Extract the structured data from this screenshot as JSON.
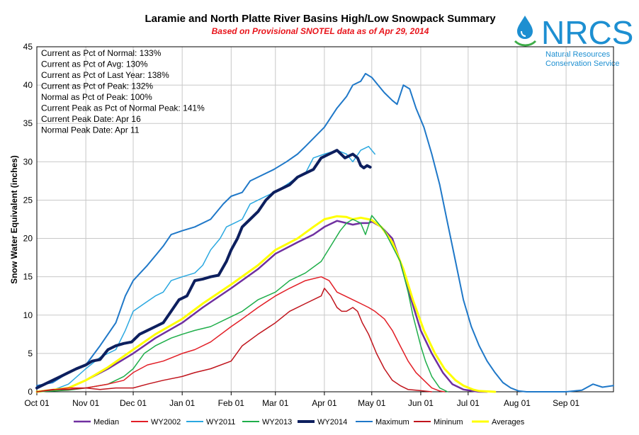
{
  "logo": {
    "text": "NRCS",
    "line1": "Natural Resources",
    "line2": "Conservation Service",
    "color": "#1d8fd1"
  },
  "chart_data": {
    "type": "line",
    "title": "Laramie and North Platte River Basins High/Low Snowpack Summary",
    "subtitle": "Based on Provisional SNOTEL data as of Apr 29, 2014",
    "ylabel": "Snow Water Equivalent (inches)",
    "xlabel": "",
    "ylim": [
      0,
      45
    ],
    "yticks": [
      0,
      5,
      10,
      15,
      20,
      25,
      30,
      35,
      40,
      45
    ],
    "xlim": [
      0,
      365
    ],
    "xticks": [
      {
        "label": "Oct 01",
        "day": 0
      },
      {
        "label": "Nov 01",
        "day": 31
      },
      {
        "label": "Dec 01",
        "day": 61
      },
      {
        "label": "Jan 01",
        "day": 92
      },
      {
        "label": "Feb 01",
        "day": 123
      },
      {
        "label": "Mar 01",
        "day": 151
      },
      {
        "label": "Apr 01",
        "day": 182
      },
      {
        "label": "May 01",
        "day": 212
      },
      {
        "label": "Jun 01",
        "day": 243
      },
      {
        "label": "Jul 01",
        "day": 273
      },
      {
        "label": "Aug 01",
        "day": 304
      },
      {
        "label": "Sep 01",
        "day": 335
      }
    ],
    "grid": true,
    "legend_position": "bottom",
    "stats": [
      "Current  as Pct of Normal: 133%",
      "Current  as Pct of Avg: 130%",
      "Current  as Pct of Last Year: 138%",
      "Current  as Pct of Peak: 132%",
      "Normal  as Pct of Peak: 100%",
      "Current  Peak as Pct of Normal  Peak: 141%",
      "Current  Peak Date: Apr 16",
      "Normal  Peak Date: Apr 11"
    ],
    "series": [
      {
        "name": "Maximum",
        "color": "#1f78c8",
        "width": 2,
        "x": [
          0,
          10,
          20,
          31,
          40,
          50,
          56,
          61,
          70,
          76,
          80,
          85,
          92,
          100,
          110,
          118,
          123,
          130,
          135,
          140,
          150,
          158,
          165,
          170,
          182,
          190,
          196,
          200,
          205,
          208,
          212,
          216,
          220,
          225,
          228,
          232,
          236,
          240,
          245,
          250,
          255,
          260,
          265,
          270,
          275,
          280,
          285,
          290,
          295,
          300,
          305,
          310,
          320,
          335,
          345,
          352,
          358,
          365
        ],
        "y": [
          0.8,
          1.2,
          2.5,
          3.5,
          6,
          9,
          12.5,
          14.5,
          16.5,
          18,
          19,
          20.5,
          21,
          21.5,
          22.5,
          24.5,
          25.5,
          26,
          27.5,
          28,
          29,
          30,
          31,
          32,
          34.5,
          37,
          38.5,
          40,
          40.5,
          41.5,
          41,
          40,
          39,
          38,
          37.5,
          40,
          39.5,
          37,
          34.5,
          31,
          27,
          22,
          17,
          12,
          8.5,
          6,
          4,
          2.5,
          1.2,
          0.5,
          0.1,
          0,
          0,
          0,
          0.2,
          1,
          0.6,
          0.8
        ]
      },
      {
        "name": "WY2011",
        "color": "#2aa8e0",
        "width": 1.5,
        "x": [
          0,
          10,
          20,
          31,
          40,
          50,
          56,
          61,
          68,
          75,
          80,
          85,
          92,
          100,
          105,
          110,
          116,
          120,
          125,
          130,
          135,
          140,
          150,
          158,
          165,
          170,
          175,
          182,
          190,
          196,
          200,
          205,
          210,
          214
        ],
        "y": [
          0,
          0.2,
          1,
          3,
          4.5,
          5.5,
          8,
          10.5,
          11.5,
          12.5,
          13,
          14.5,
          15,
          15.5,
          16.5,
          18.5,
          20,
          21.5,
          22,
          22.5,
          24.5,
          25,
          26,
          27,
          28,
          28.5,
          30.5,
          31,
          31.5,
          31,
          30,
          31.5,
          32,
          31
        ]
      },
      {
        "name": "Median",
        "color": "#7030a0",
        "width": 2.5,
        "x": [
          0,
          20,
          31,
          45,
          61,
          75,
          92,
          105,
          123,
          140,
          151,
          165,
          175,
          182,
          190,
          196,
          200,
          205,
          210,
          212,
          218,
          225,
          230,
          237,
          243,
          250,
          257,
          263,
          270,
          276,
          280,
          285
        ],
        "y": [
          0,
          0.5,
          1.5,
          3,
          5,
          7,
          9,
          11,
          13.5,
          16,
          18,
          19.5,
          20.5,
          21.5,
          22.3,
          22,
          21.8,
          22,
          22,
          22.2,
          21.5,
          20,
          17,
          12,
          8,
          5,
          2.5,
          1,
          0.3,
          0.1,
          0,
          0
        ]
      },
      {
        "name": "Averages",
        "color": "#ffff00",
        "width": 3,
        "x": [
          0,
          20,
          31,
          45,
          61,
          75,
          92,
          105,
          123,
          140,
          151,
          165,
          175,
          182,
          190,
          196,
          200,
          205,
          210,
          212,
          218,
          225,
          232,
          238,
          245,
          252,
          258,
          265,
          270,
          276,
          280,
          290
        ],
        "y": [
          0,
          0.5,
          1.5,
          3.2,
          5.5,
          7.5,
          9.5,
          11.5,
          14,
          16.5,
          18.5,
          20,
          21.5,
          22.5,
          22.9,
          22.8,
          22.5,
          22.7,
          22.5,
          22.4,
          21.5,
          19.5,
          16,
          12,
          8,
          5,
          3,
          1.5,
          0.8,
          0.3,
          0.1,
          0
        ]
      },
      {
        "name": "WY2013",
        "color": "#1fae4a",
        "width": 1.5,
        "x": [
          0,
          20,
          31,
          45,
          55,
          61,
          68,
          75,
          85,
          92,
          100,
          110,
          120,
          130,
          140,
          151,
          160,
          170,
          180,
          186,
          192,
          196,
          200,
          205,
          208,
          212,
          216,
          220,
          225,
          230,
          235,
          238,
          243,
          246,
          250,
          255,
          260
        ],
        "y": [
          0,
          0.2,
          0.5,
          1,
          2,
          3,
          5,
          6,
          7,
          7.5,
          8,
          8.5,
          9.5,
          10.5,
          12,
          13,
          14.5,
          15.5,
          17,
          19,
          21,
          22,
          22.5,
          22,
          20.5,
          23,
          22,
          21,
          19,
          17,
          13,
          10,
          6,
          4,
          2,
          0.5,
          0
        ]
      },
      {
        "name": "WY2002",
        "color": "#e21e26",
        "width": 1.5,
        "x": [
          0,
          20,
          31,
          45,
          55,
          61,
          70,
          80,
          92,
          100,
          110,
          123,
          130,
          140,
          151,
          160,
          170,
          180,
          185,
          190,
          195,
          200,
          205,
          210,
          214,
          220,
          225,
          230,
          235,
          240,
          245,
          250,
          255,
          258
        ],
        "y": [
          0,
          0.5,
          0.5,
          1,
          1.5,
          2.5,
          3.5,
          4,
          5,
          5.5,
          6.5,
          8.5,
          9.5,
          11,
          12.5,
          13.5,
          14.5,
          15,
          14.5,
          13,
          12.5,
          12,
          11.5,
          11,
          10.5,
          9.5,
          8,
          6,
          4,
          2.5,
          1.5,
          0.5,
          0.1,
          0
        ]
      },
      {
        "name": "Mininum",
        "color": "#c0141c",
        "width": 1.5,
        "x": [
          0,
          10,
          20,
          31,
          40,
          50,
          61,
          70,
          80,
          92,
          100,
          110,
          123,
          130,
          140,
          151,
          160,
          170,
          180,
          182,
          186,
          190,
          193,
          196,
          200,
          203,
          206,
          210,
          215,
          220,
          225,
          230,
          235,
          240,
          245,
          250
        ],
        "y": [
          0,
          0.3,
          0.3,
          0.5,
          0.3,
          0.5,
          0.5,
          1,
          1.5,
          2,
          2.5,
          3,
          4,
          6,
          7.5,
          9,
          10.5,
          11.5,
          12.5,
          13.5,
          12.5,
          11,
          10.5,
          10.5,
          11,
          10.5,
          9,
          7.5,
          5,
          3,
          1.5,
          0.8,
          0.3,
          0.2,
          0.1,
          0
        ]
      },
      {
        "name": "WY2014",
        "color": "#0d1f5e",
        "width": 4,
        "x": [
          0,
          5,
          10,
          15,
          20,
          25,
          31,
          35,
          40,
          45,
          50,
          55,
          60,
          65,
          70,
          75,
          80,
          85,
          90,
          95,
          100,
          105,
          110,
          115,
          120,
          123,
          127,
          130,
          135,
          140,
          145,
          150,
          155,
          160,
          165,
          170,
          175,
          180,
          185,
          190,
          195,
          200,
          203,
          205,
          207,
          209,
          211
        ],
        "y": [
          0.5,
          1,
          1.5,
          2,
          2.5,
          3,
          3.5,
          4,
          4.2,
          5.5,
          6,
          6.3,
          6.5,
          7.5,
          8,
          8.5,
          9,
          10.5,
          12,
          12.5,
          14.5,
          14.7,
          15,
          15.2,
          17,
          18.5,
          20,
          21.5,
          22.5,
          23.5,
          25,
          26,
          26.5,
          27,
          28,
          28.5,
          29,
          30.5,
          31,
          31.5,
          30.5,
          31,
          30.5,
          29.5,
          29.2,
          29.5,
          29.3
        ]
      }
    ]
  }
}
